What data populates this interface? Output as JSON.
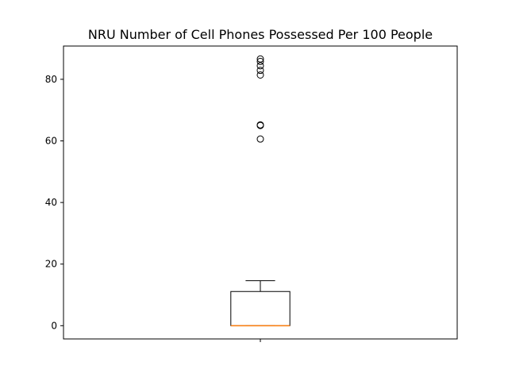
{
  "chart_data": {
    "type": "box",
    "title": "NRU Number of Cell Phones Possessed Per 100 People",
    "xlabel": "",
    "ylabel": "",
    "ylim": [
      -4.3,
      90.8
    ],
    "yticks": [
      0,
      20,
      40,
      60,
      80
    ],
    "ytick_labels": [
      "0",
      "20",
      "40",
      "60",
      "80"
    ],
    "xticks": [
      1
    ],
    "xtick_labels": [
      ""
    ],
    "grid": false,
    "legend": "none",
    "box": {
      "min": 0,
      "q1": 0,
      "median": 0,
      "q3": 11.1,
      "whisker_low": 0,
      "whisker_high": 14.6,
      "outliers": [
        60.6,
        65.0,
        65.2,
        81.4,
        82.9,
        84.4,
        85.8,
        86.6
      ]
    },
    "colors": {
      "box": "#000000",
      "median": "#ff7f0e",
      "outlier_marker": "#000000"
    }
  }
}
